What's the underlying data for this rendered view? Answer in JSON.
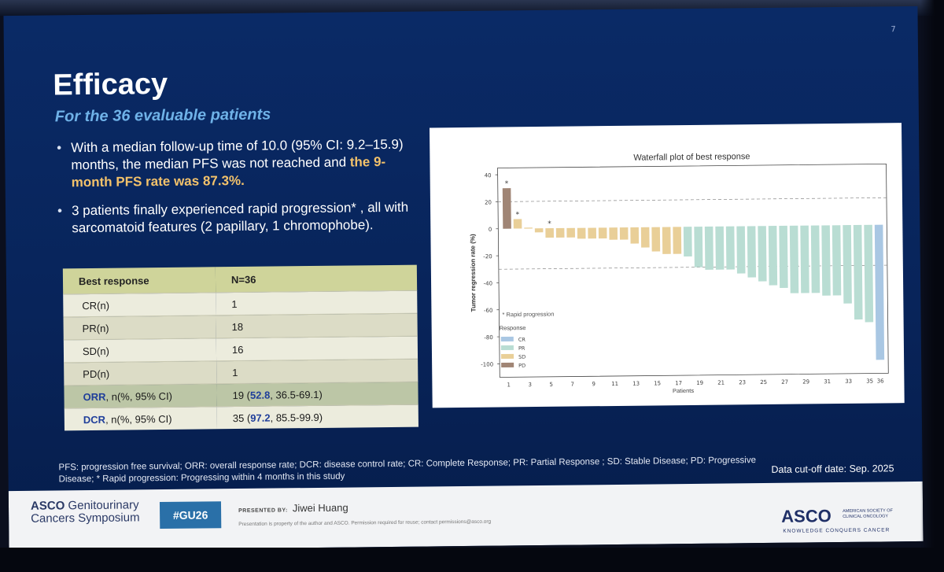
{
  "slide": {
    "number": "7",
    "title": "Efficacy",
    "subtitle": "For the 36 evaluable patients",
    "bullet1_pre": "With a median follow-up time of 10.0 (95% CI: 9.2–15.9) months, the median PFS was not reached and ",
    "bullet1_hl": "the 9-month PFS rate was 87.3%.",
    "bullet2": "3 patients finally experienced rapid progression* , all with sarcomatoid features (2 papillary, 1 chromophobe).",
    "footnote": "PFS: progression free survival; ORR: overall response rate; DCR: disease control rate; CR: Complete Response; PR: Partial Response ; SD: Stable Disease; PD: Progressive Disease; * Rapid progression: Progressing within 4 months in this study",
    "cutoff": "Data cut-off date: Sep. 2025"
  },
  "table": {
    "header": [
      "Best response",
      "N=36"
    ],
    "rows": [
      [
        "CR(n)",
        "1"
      ],
      [
        "PR(n)",
        "18"
      ],
      [
        "SD(n)",
        "16"
      ],
      [
        "PD(n)",
        "1"
      ]
    ],
    "orr_label_b": "ORR",
    "orr_label_rest": ", n(%, 95% CI)",
    "orr_n": "19 (",
    "orr_pct": "52.8",
    "orr_ci": ", 36.5-69.1)",
    "dcr_label_b": "DCR",
    "dcr_label_rest": ", n(%, 95% CI)",
    "dcr_n": "35 (",
    "dcr_pct": "97.2",
    "dcr_ci": ", 85.5-99.9)"
  },
  "footer": {
    "asco_line1": "ASCO",
    "asco_line1b": " Genitourinary",
    "asco_line2": "Cancers Symposium",
    "hashtag": "#GU26",
    "presented_by": "PRESENTED BY:",
    "presenter": "Jiwei Huang",
    "property": "Presentation is property of the author and ASCO. Permission required for reuse; contact permissions@asco.org",
    "asco_word": "ASCO",
    "asco_society": "AMERICAN SOCIETY OF CLINICAL ONCOLOGY",
    "asco_tagline": "KNOWLEDGE CONQUERS CANCER"
  },
  "chart_data": {
    "type": "bar",
    "title": "Waterfall plot of best response",
    "xlabel": "Patients",
    "ylabel": "Tumor regression rate (%)",
    "ylim": [
      -110,
      45
    ],
    "yticks": [
      40,
      20,
      0,
      -20,
      -40,
      -60,
      -80,
      -100
    ],
    "xticks": [
      "1",
      "3",
      "5",
      "7",
      "9",
      "11",
      "13",
      "15",
      "17",
      "19",
      "21",
      "23",
      "25",
      "27",
      "29",
      "31",
      "33",
      "35",
      "36"
    ],
    "reference_lines": [
      20,
      -30
    ],
    "annotation": "* Rapid progression",
    "legend_title": "Response",
    "legend": [
      {
        "label": "CR",
        "color": "#a9c7e3"
      },
      {
        "label": "PR",
        "color": "#b9ddd3"
      },
      {
        "label": "SD",
        "color": "#e9cf98"
      },
      {
        "label": "PD",
        "color": "#a08575"
      }
    ],
    "rapid_progression_patients": [
      1,
      2,
      5
    ],
    "categories": [
      "1",
      "2",
      "3",
      "4",
      "5",
      "6",
      "7",
      "8",
      "9",
      "10",
      "11",
      "12",
      "13",
      "14",
      "15",
      "16",
      "17",
      "18",
      "19",
      "20",
      "21",
      "22",
      "23",
      "24",
      "25",
      "26",
      "27",
      "28",
      "29",
      "30",
      "31",
      "32",
      "33",
      "34",
      "35",
      "36"
    ],
    "values": [
      30,
      7,
      0,
      -3,
      -7,
      -7,
      -7,
      -8,
      -8,
      -8,
      -9,
      -9,
      -12,
      -15,
      -18,
      -20,
      -20,
      -22,
      -30,
      -32,
      -32,
      -32,
      -35,
      -38,
      -41,
      -44,
      -46,
      -50,
      -50,
      -50,
      -52,
      -52,
      -58,
      -70,
      -72,
      -100
    ],
    "response": [
      "PD",
      "SD",
      "SD",
      "SD",
      "SD",
      "SD",
      "SD",
      "SD",
      "SD",
      "SD",
      "SD",
      "SD",
      "SD",
      "SD",
      "SD",
      "SD",
      "SD",
      "PR",
      "PR",
      "PR",
      "PR",
      "PR",
      "PR",
      "PR",
      "PR",
      "PR",
      "PR",
      "PR",
      "PR",
      "PR",
      "PR",
      "PR",
      "PR",
      "PR",
      "PR",
      "CR"
    ]
  }
}
